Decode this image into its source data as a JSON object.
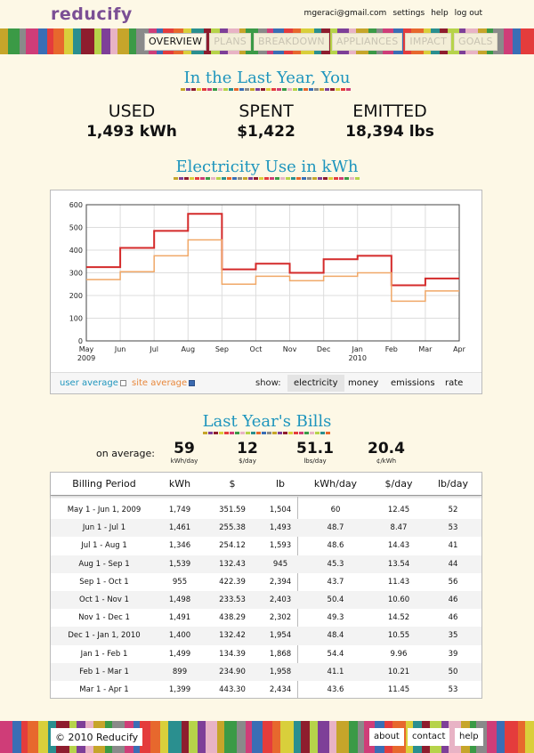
{
  "header": {
    "logo": "reducify",
    "links": [
      "mgeraci@gmail.com",
      "settings",
      "help",
      "log out"
    ]
  },
  "nav": {
    "tabs": [
      "OVERVIEW",
      "PLANS",
      "BREAKDOWN",
      "APPLIANCES",
      "IMPACT",
      "GOALS"
    ],
    "active": "OVERVIEW"
  },
  "summary": {
    "title": "In the Last Year, You",
    "stats": [
      {
        "label": "USED",
        "value": "1,493 kWh"
      },
      {
        "label": "SPENT",
        "value": "$1,422"
      },
      {
        "label": "EMITTED",
        "value": "18,394 lbs"
      }
    ]
  },
  "chart_section": {
    "title": "Electricity Use in kWh",
    "user_average_label": "user average",
    "site_average_label": "site average",
    "user_average_checked": false,
    "site_average_checked": true,
    "show_label": "show:",
    "show_options": [
      "electricity",
      "money",
      "emissions",
      "rate"
    ],
    "show_selected": "electricity"
  },
  "chart_data": {
    "type": "line",
    "step": true,
    "x_ticks": [
      "May\n2009",
      "Jun",
      "Jul",
      "Aug",
      "Sep",
      "Oct",
      "Nov",
      "Dec",
      "Jan\n2010",
      "Feb",
      "Mar",
      "Apr"
    ],
    "ylim": [
      0,
      600
    ],
    "y_ticks": [
      0,
      100,
      200,
      300,
      400,
      500,
      600
    ],
    "grid": true,
    "series": [
      {
        "color": "#d42a2a",
        "values": [
          325,
          410,
          485,
          560,
          315,
          340,
          300,
          360,
          375,
          245,
          275
        ]
      },
      {
        "color": "#f0a868",
        "values": [
          270,
          305,
          375,
          445,
          250,
          285,
          265,
          285,
          300,
          175,
          220
        ]
      }
    ]
  },
  "bills": {
    "title": "Last Year's Bills",
    "average_label": "on average:",
    "averages": [
      {
        "value": "59",
        "unit": "kWh/day"
      },
      {
        "value": "12",
        "unit": "$/day"
      },
      {
        "value": "51.1",
        "unit": "lbs/day"
      },
      {
        "value": "20.4",
        "unit": "¢/kWh"
      }
    ],
    "columns": [
      "Billing Period",
      "kWh",
      "$",
      "lb",
      "kWh/day",
      "$/day",
      "lb/day"
    ],
    "rows": [
      [
        "May 1 - Jun 1, 2009",
        "1,749",
        "351.59",
        "1,504",
        "60",
        "12.45",
        "52"
      ],
      [
        "Jun 1 - Jul 1",
        "1,461",
        "255.38",
        "1,493",
        "48.7",
        "8.47",
        "53"
      ],
      [
        "Jul 1 - Aug 1",
        "1,346",
        "254.12",
        "1,593",
        "48.6",
        "14.43",
        "41"
      ],
      [
        "Aug 1 - Sep 1",
        "1,539",
        "132.43",
        "945",
        "45.3",
        "13.54",
        "44"
      ],
      [
        "Sep 1 - Oct 1",
        "955",
        "422.39",
        "2,394",
        "43.7",
        "11.43",
        "56"
      ],
      [
        "Oct 1 - Nov 1",
        "1,498",
        "233.53",
        "2,403",
        "50.4",
        "10.60",
        "46"
      ],
      [
        "Nov 1 - Dec 1",
        "1,491",
        "438.29",
        "2,302",
        "49.3",
        "14.52",
        "46"
      ],
      [
        "Dec 1 - Jan 1, 2010",
        "1,400",
        "132.42",
        "1,954",
        "48.4",
        "10.55",
        "35"
      ],
      [
        "Jan 1 - Feb 1",
        "1,499",
        "134.39",
        "1,868",
        "54.4",
        "9.96",
        "39"
      ],
      [
        "Feb 1 - Mar 1",
        "899",
        "234.90",
        "1,958",
        "41.1",
        "10.21",
        "50"
      ],
      [
        "Mar 1 - Apr 1",
        "1,399",
        "443.30",
        "2,434",
        "43.6",
        "11.45",
        "53"
      ]
    ]
  },
  "footer": {
    "copyright": "© 2010 Reducify",
    "links": [
      "about",
      "contact",
      "help"
    ]
  },
  "colors": {
    "title_blue": "#1e95bd",
    "logo_purple": "#7b4f95",
    "background": "#fdf8e6",
    "stripe_palette": [
      "#c6a52a",
      "#2a8f8f",
      "#cf3d78",
      "#7e3f98",
      "#e7682d",
      "#3b9a46",
      "#8e1d2e",
      "#3a6eb5",
      "#e8b3c5",
      "#d9cf3b",
      "#8a8a8a",
      "#b6d34a",
      "#e43c3c"
    ]
  }
}
